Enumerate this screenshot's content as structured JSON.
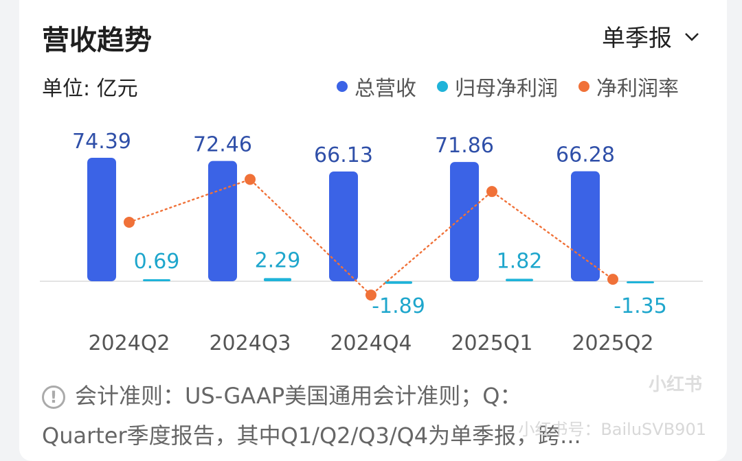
{
  "header": {
    "title": "营收趋势",
    "period_label": "单季报"
  },
  "unit_label": "单位: 亿元",
  "colors": {
    "revenue": "#3b63e6",
    "profit": "#1fb3d9",
    "margin": "#f07138"
  },
  "chart_data": {
    "type": "bar",
    "categories": [
      "2024Q2",
      "2024Q3",
      "2024Q4",
      "2025Q1",
      "2025Q2"
    ],
    "series": [
      {
        "name": "总营收",
        "kind": "bar",
        "values": [
          74.39,
          72.46,
          66.13,
          71.86,
          66.28
        ],
        "labels": [
          "74.39",
          "72.46",
          "66.13",
          "71.86",
          "66.28"
        ]
      },
      {
        "name": "归母净利润",
        "kind": "bar",
        "values": [
          0.69,
          2.29,
          -1.89,
          1.82,
          -1.35
        ],
        "labels": [
          "0.69",
          "2.29",
          "-1.89",
          "1.82",
          "-1.35"
        ]
      },
      {
        "name": "净利润率",
        "kind": "line",
        "style": "dotted",
        "values": [
          0.93,
          3.16,
          -2.86,
          2.53,
          -2.04
        ]
      }
    ],
    "xlabel": "",
    "ylabel": "",
    "legend": "top-right",
    "grid": false
  },
  "footnote": {
    "line1": "会计准则：US-GAAP美国通用会计准则；Q：",
    "line2": "Quarter季度报告，其中Q1/Q2/Q3/Q4为单季报，跨..."
  },
  "watermark": {
    "brand": "小红书",
    "user": "小红书号：BailuSVB901"
  }
}
